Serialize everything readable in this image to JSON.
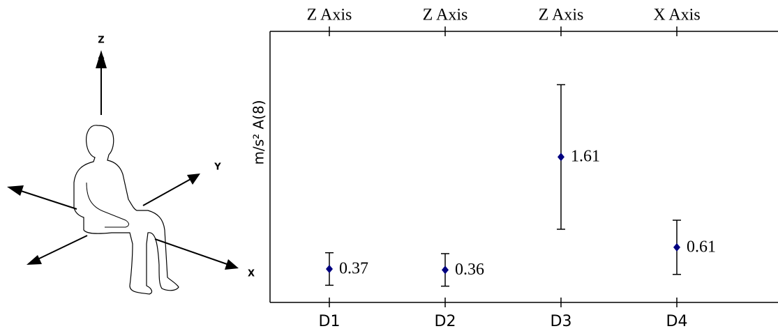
{
  "chart_data": {
    "type": "errorbar",
    "y_label": "m/s² A(8)",
    "categories": [
      "D1",
      "D2",
      "D3",
      "D4"
    ],
    "top_categories": [
      "Z Axis",
      "Z Axis",
      "Z Axis",
      "X Axis"
    ],
    "values": [
      0.37,
      0.36,
      1.61,
      0.61
    ],
    "errors": [
      0.18,
      0.18,
      0.8,
      0.3
    ],
    "color": "#000080",
    "ylim": [
      0,
      3
    ]
  },
  "diagram": {
    "axis_labels": [
      "Z",
      "Y",
      "X"
    ]
  }
}
